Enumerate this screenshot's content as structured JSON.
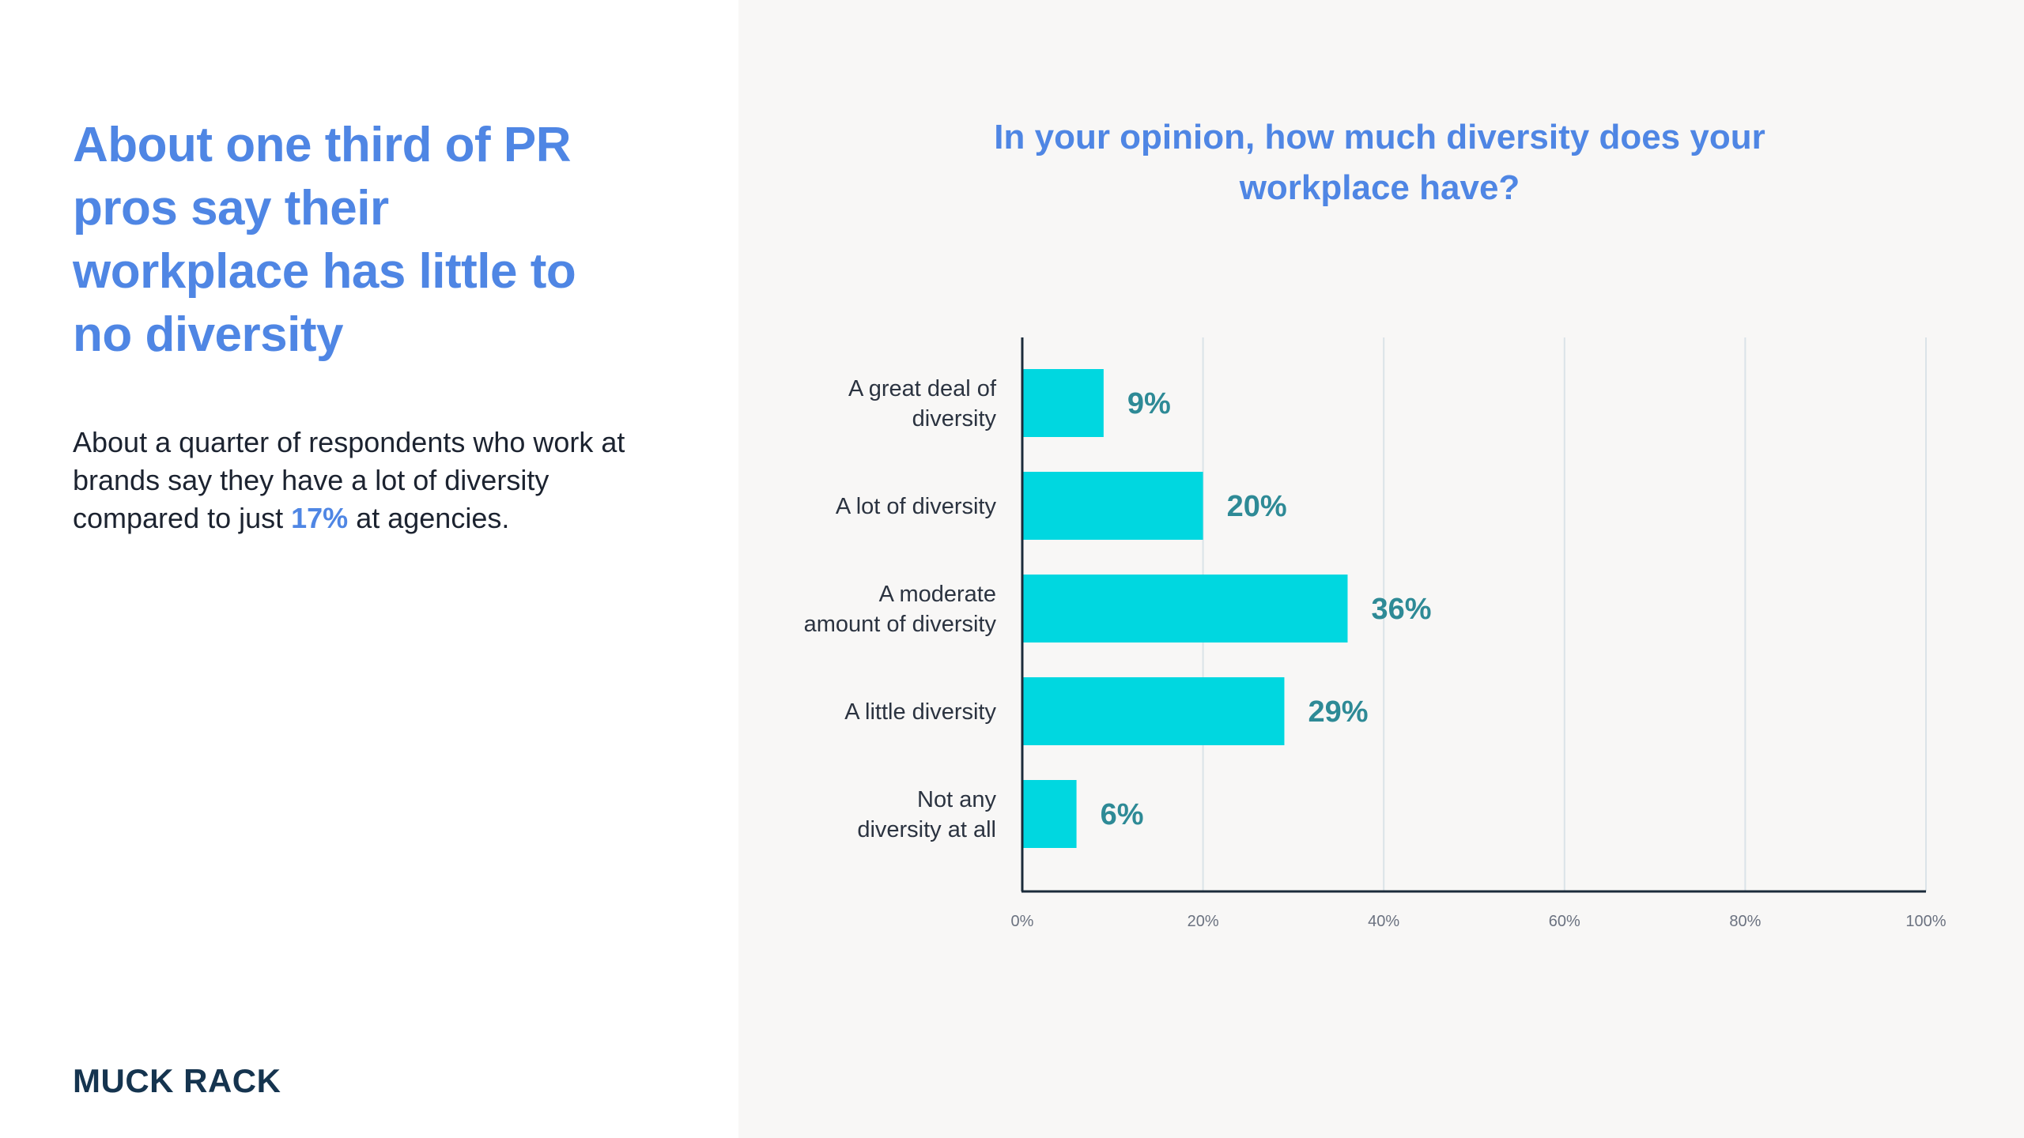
{
  "headline": "About one third of PR pros say their workplace has little to no diversity",
  "body": {
    "before": "About a quarter of respondents who work at brands say they have a lot of diversity compared to just ",
    "highlight": "17%",
    "after": " at agencies."
  },
  "logo": "MUCK RACK",
  "chart_data": {
    "type": "bar",
    "orientation": "horizontal",
    "title": "In your opinion, how much diversity does your workplace have?",
    "categories": [
      [
        "A great deal of",
        "diversity"
      ],
      [
        "A lot of diversity"
      ],
      [
        "A moderate",
        "amount of diversity"
      ],
      [
        "A little diversity"
      ],
      [
        "Not any",
        "diversity at all"
      ]
    ],
    "values": [
      9,
      20,
      36,
      29,
      6
    ],
    "value_labels": [
      "9%",
      "20%",
      "36%",
      "29%",
      "6%"
    ],
    "xlim": [
      0,
      100
    ],
    "xticks": [
      0,
      20,
      40,
      60,
      80,
      100
    ],
    "xtick_labels": [
      "0%",
      "20%",
      "40%",
      "60%",
      "80%",
      "100%"
    ],
    "grid": "vertical",
    "colors": {
      "bar": "#00d7e0",
      "value_label": "#2e8a96",
      "grid": "#dbe3e8",
      "axis": "#1b2b3a"
    }
  }
}
